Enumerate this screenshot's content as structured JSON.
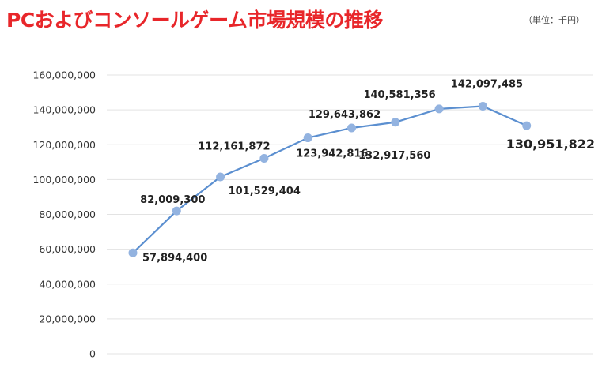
{
  "header": {
    "title": "PCおよびコンソールゲーム市場規模の推移",
    "unit": "（単位：千円）"
  },
  "chart_data": {
    "type": "line",
    "title": "PCおよびコンソールゲーム市場規模の推移",
    "xlabel": "",
    "ylabel": "",
    "ylim": [
      0,
      160000000
    ],
    "yticks": [
      0,
      20000000,
      40000000,
      60000000,
      80000000,
      100000000,
      120000000,
      140000000,
      160000000
    ],
    "ytick_labels": [
      "0",
      "20,000,000",
      "40,000,000",
      "60,000,000",
      "80,000,000",
      "100,000,000",
      "120,000,000",
      "140,000,000",
      "160,000,000"
    ],
    "grid": true,
    "series": [
      {
        "color": "#5b8fd0",
        "marker_color": "#93b3e0",
        "values": [
          57894400,
          82009300,
          101529404,
          112161872,
          123942816,
          129643862,
          132917560,
          140581356,
          142097485,
          130951822
        ],
        "labels": [
          "57,894,400",
          "82,009,300",
          "101,529,404",
          "112,161,872",
          "123,942,816",
          "129,643,862",
          "132,917,560",
          "140,581,356",
          "142,097,485",
          "130,951,822"
        ]
      }
    ]
  }
}
